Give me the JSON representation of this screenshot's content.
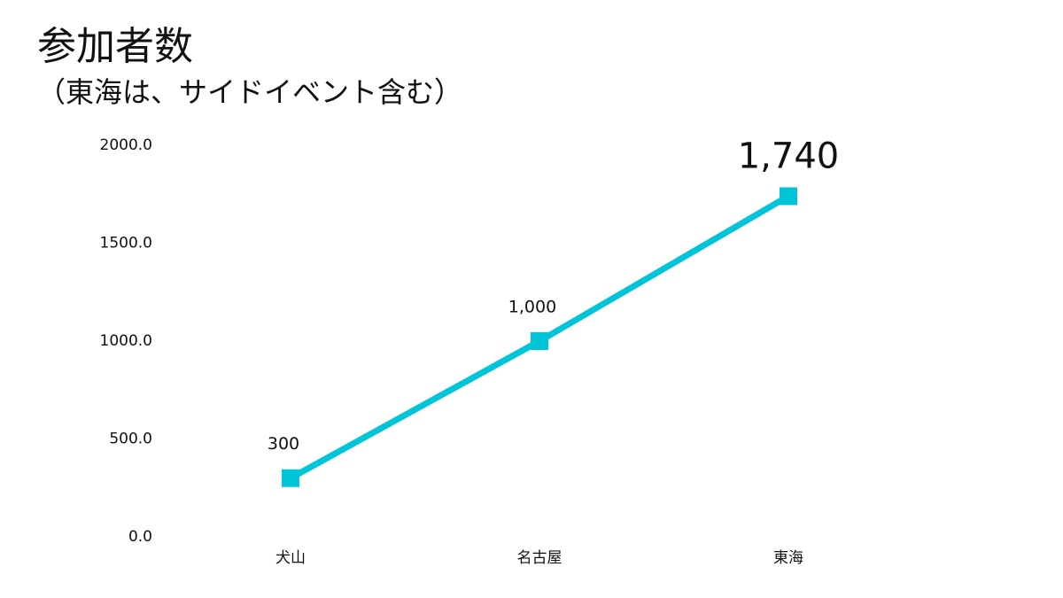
{
  "chart_data": {
    "type": "line",
    "title": "参加者数",
    "subtitle": "（東海は、サイドイベント含む）",
    "categories": [
      "犬山",
      "名古屋",
      "東海"
    ],
    "series": [
      {
        "name": "参加者数",
        "color": "#00c5d8",
        "values": [
          300,
          1000,
          1740
        ],
        "value_labels": [
          "300",
          "1,000",
          "1,740"
        ]
      }
    ],
    "ylim": [
      0,
      2000
    ],
    "yticks": [
      {
        "value": 0,
        "label": "0.0"
      },
      {
        "value": 500,
        "label": "500.0"
      },
      {
        "value": 1000,
        "label": "1000.0"
      },
      {
        "value": 1500,
        "label": "1500.0"
      },
      {
        "value": 2000,
        "label": "2000.0"
      }
    ],
    "grid": false
  }
}
